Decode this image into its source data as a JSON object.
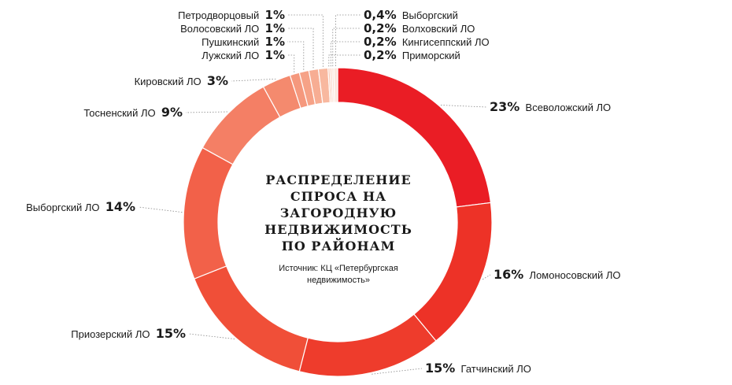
{
  "title": "Распределение спроса на загородную недвижимость по районам",
  "source": "Источник: КЦ «Петербургская недвижимость»",
  "chart_data": {
    "type": "pie",
    "title": "Распределение спроса на загородную недвижимость по районам",
    "categories": [
      "Всеволожский ЛО",
      "Ломоносовский ЛО",
      "Гатчинский ЛО",
      "Приозерский ЛО",
      "Выборгский ЛО",
      "Тосненский ЛО",
      "Кировский ЛО",
      "Лужский ЛО",
      "Пушкинский",
      "Волосовский ЛО",
      "Петродворцовый",
      "Приморский",
      "Кингисеппский ЛО",
      "Волховский ЛО",
      "Выборгский"
    ],
    "values": [
      23,
      16,
      15,
      15,
      14,
      9,
      3,
      1,
      1,
      1,
      1,
      0.2,
      0.2,
      0.2,
      0.4
    ],
    "value_labels": [
      "23%",
      "16%",
      "15%",
      "15%",
      "14%",
      "9%",
      "3%",
      "1%",
      "1%",
      "1%",
      "1%",
      "0,2%",
      "0,2%",
      "0,2%",
      "0,4%"
    ],
    "colors": [
      "#ea1d25",
      "#ed3227",
      "#ee3c2c",
      "#f04f38",
      "#f26149",
      "#f47f65",
      "#f48a6e",
      "#f5987d",
      "#f6a287",
      "#f7ad93",
      "#f8b89f",
      "#f9c6b0",
      "#fad0be",
      "#fbdccd",
      "#fce6dc"
    ],
    "legend": "none"
  }
}
